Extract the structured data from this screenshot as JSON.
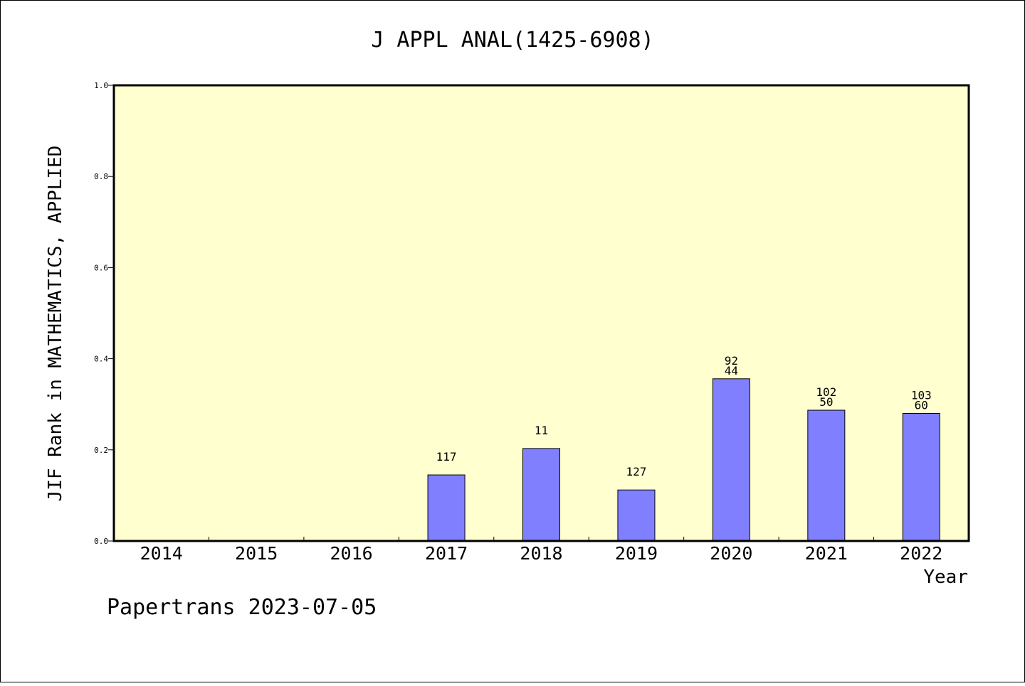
{
  "colors": {
    "plot_background": "#ffffd0",
    "bar_fill": "#8080ff",
    "bar_stroke": "#000000",
    "frame": "#000000"
  },
  "footer": "Papertrans 2023-07-05",
  "chart_data": {
    "type": "bar",
    "title": "J APPL ANAL(1425-6908)",
    "xlabel": "Year",
    "ylabel": "JIF Rank in MATHEMATICS, APPLIED",
    "ylim": [
      0,
      1.0
    ],
    "yticks": [
      "0.0",
      "0.2",
      "0.4",
      "0.6",
      "0.8",
      "1.0"
    ],
    "grid": false,
    "legend": "none",
    "categories": [
      "2014",
      "2015",
      "2016",
      "2017",
      "2018",
      "2019",
      "2020",
      "2021",
      "2022"
    ],
    "values": [
      null,
      null,
      null,
      0.145,
      0.203,
      0.112,
      0.356,
      0.287,
      0.28
    ],
    "labels": [
      [],
      [],
      [],
      [
        "117"
      ],
      [
        "11"
      ],
      [
        "127"
      ],
      [
        "92",
        "44"
      ],
      [
        "102",
        "50"
      ],
      [
        "103",
        "60"
      ]
    ]
  }
}
